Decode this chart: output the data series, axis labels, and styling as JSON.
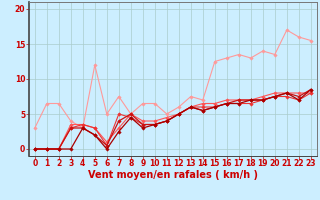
{
  "background_color": "#cceeff",
  "grid_color": "#aacccc",
  "xlabel": "Vent moyen/en rafales ( km/h )",
  "xlim": [
    -0.5,
    23.5
  ],
  "ylim": [
    -1,
    21
  ],
  "xticks": [
    0,
    1,
    2,
    3,
    4,
    5,
    6,
    7,
    8,
    9,
    10,
    11,
    12,
    13,
    14,
    15,
    16,
    17,
    18,
    19,
    20,
    21,
    22,
    23
  ],
  "yticks": [
    0,
    5,
    10,
    15,
    20
  ],
  "series": [
    {
      "x": [
        0,
        1,
        2,
        3,
        4,
        5,
        6,
        7,
        8,
        9,
        10,
        11,
        12,
        13,
        14,
        15,
        16,
        17,
        18,
        19,
        20,
        21,
        22,
        23
      ],
      "y": [
        3,
        6.5,
        6.5,
        4,
        3,
        12,
        5,
        7.5,
        5,
        6.5,
        6.5,
        5,
        6,
        7.5,
        7,
        12.5,
        13,
        13.5,
        13,
        14,
        13.5,
        17,
        16,
        15.5
      ],
      "color": "#ff9999",
      "lw": 0.8,
      "marker": "D",
      "ms": 1.8
    },
    {
      "x": [
        0,
        1,
        2,
        3,
        4,
        5,
        6,
        7,
        8,
        9,
        10,
        11,
        12,
        13,
        14,
        15,
        16,
        17,
        18,
        19,
        20,
        21,
        22,
        23
      ],
      "y": [
        0,
        0,
        0,
        3.5,
        3.5,
        3,
        1,
        3,
        5,
        4,
        4,
        4.5,
        5,
        6,
        6.5,
        6.5,
        7,
        7,
        7,
        7.5,
        8,
        8,
        8,
        8
      ],
      "color": "#ff5555",
      "lw": 0.8,
      "marker": "D",
      "ms": 1.8
    },
    {
      "x": [
        0,
        1,
        2,
        3,
        4,
        5,
        6,
        7,
        8,
        9,
        10,
        11,
        12,
        13,
        14,
        15,
        16,
        17,
        18,
        19,
        20,
        21,
        22,
        23
      ],
      "y": [
        0,
        0,
        0,
        3,
        3.5,
        3,
        0.5,
        5,
        4.5,
        3.5,
        3.5,
        4,
        5,
        6,
        6,
        6,
        6.5,
        6.5,
        6.5,
        7,
        7.5,
        7.5,
        7,
        8
      ],
      "color": "#ee3333",
      "lw": 0.8,
      "marker": "D",
      "ms": 1.8
    },
    {
      "x": [
        0,
        1,
        2,
        3,
        4,
        5,
        6,
        7,
        8,
        9,
        10,
        11,
        12,
        13,
        14,
        15,
        16,
        17,
        18,
        19,
        20,
        21,
        22,
        23
      ],
      "y": [
        0,
        0,
        0,
        3,
        3,
        2,
        0.5,
        4,
        5,
        3.5,
        3.5,
        4,
        5,
        6,
        5.5,
        6,
        6.5,
        7,
        7,
        7,
        7.5,
        8,
        7.5,
        8.5
      ],
      "color": "#cc1111",
      "lw": 0.9,
      "marker": "D",
      "ms": 1.8
    },
    {
      "x": [
        0,
        1,
        2,
        3,
        4,
        5,
        6,
        7,
        8,
        9,
        10,
        11,
        12,
        13,
        14,
        15,
        16,
        17,
        18,
        19,
        20,
        21,
        22,
        23
      ],
      "y": [
        0,
        0,
        0,
        0,
        3,
        2,
        0,
        2.5,
        4.5,
        3,
        3.5,
        4,
        5,
        6,
        5.5,
        6,
        6.5,
        6.5,
        7,
        7,
        7.5,
        8,
        7,
        8.5
      ],
      "color": "#aa0000",
      "lw": 0.9,
      "marker": "D",
      "ms": 1.8
    }
  ],
  "tick_label_color": "#cc0000",
  "axis_label_color": "#cc0000",
  "tick_fontsize": 5.5,
  "label_fontsize": 7
}
